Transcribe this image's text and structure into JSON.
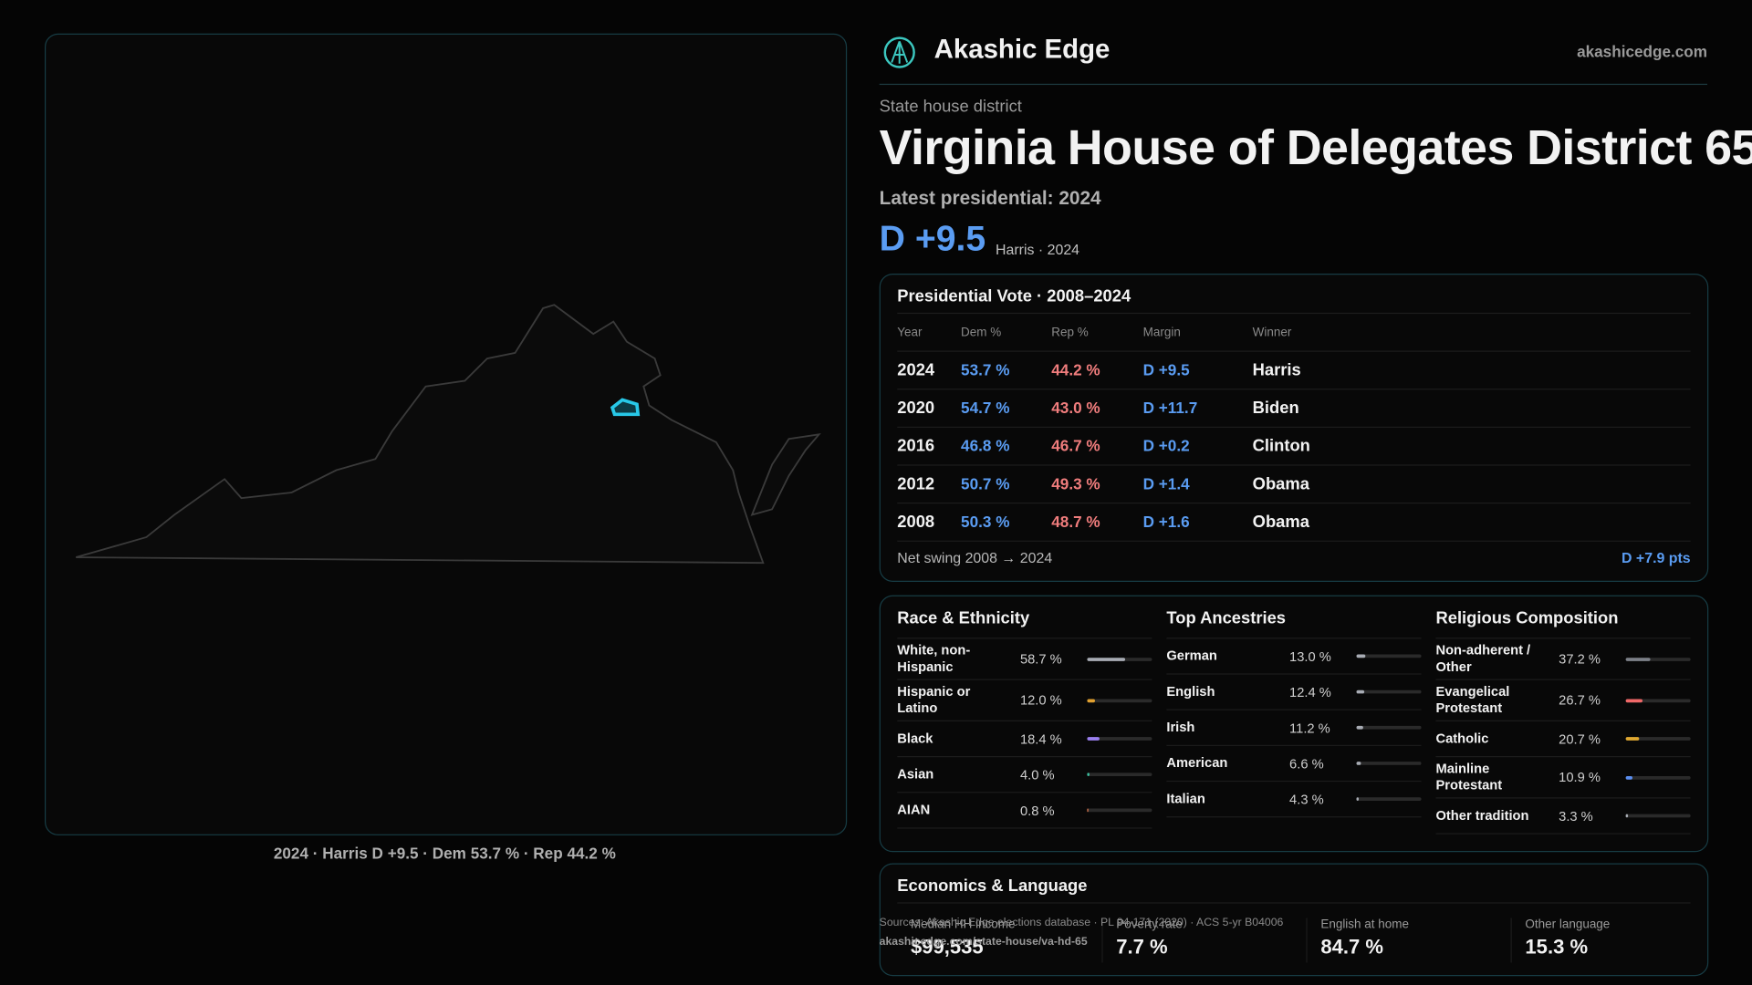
{
  "header": {
    "brand": "Akashic Edge",
    "site": "akashicedge.com"
  },
  "district": {
    "kind": "State house district",
    "title": "Virginia House of Delegates District 65",
    "latest": "Latest presidential: 2024",
    "margin": "D +9.5",
    "margin_note": "Harris · 2024"
  },
  "map": {
    "caption": "2024 · Harris D +9.5 · Dem 53.7 % · Rep 44.2 %"
  },
  "presidential": {
    "title": "Presidential Vote · 2008–2024",
    "columns": [
      "Year",
      "Dem %",
      "Rep %",
      "Margin",
      "Winner"
    ],
    "rows": [
      [
        "2024",
        "53.7 %",
        "44.2 %",
        "D +9.5",
        "Harris"
      ],
      [
        "2020",
        "54.7 %",
        "43.0 %",
        "D +11.7",
        "Biden"
      ],
      [
        "2016",
        "46.8 %",
        "46.7 %",
        "D +0.2",
        "Clinton"
      ],
      [
        "2012",
        "50.7 %",
        "49.3 %",
        "D +1.4",
        "Obama"
      ],
      [
        "2008",
        "50.3 %",
        "48.7 %",
        "D +1.6",
        "Obama"
      ]
    ],
    "swing_label": "Net swing 2008 → 2024",
    "swing_value": "D +7.9 pts"
  },
  "demographics": [
    {
      "title": "Race & Ethnicity",
      "items": [
        {
          "name": "White, non-Hispanic",
          "value": 58.7,
          "label": "58.7 %",
          "color": "#a8acb4"
        },
        {
          "name": "Hispanic or Latino",
          "value": 12.0,
          "label": "12.0 %",
          "color": "#e0a030"
        },
        {
          "name": "Black",
          "value": 18.4,
          "label": "18.4 %",
          "color": "#9a7ff0"
        },
        {
          "name": "Asian",
          "value": 4.0,
          "label": "4.0 %",
          "color": "#3cc0a0"
        },
        {
          "name": "AIAN",
          "value": 0.8,
          "label": "0.8 %",
          "color": "#e07a50"
        }
      ]
    },
    {
      "title": "Top Ancestries",
      "items": [
        {
          "name": "German",
          "value": 13.0,
          "label": "13.0 %",
          "color": "#a8acb4"
        },
        {
          "name": "English",
          "value": 12.4,
          "label": "12.4 %",
          "color": "#a8acb4"
        },
        {
          "name": "Irish",
          "value": 11.2,
          "label": "11.2 %",
          "color": "#a8acb4"
        },
        {
          "name": "American",
          "value": 6.6,
          "label": "6.6 %",
          "color": "#a8acb4"
        },
        {
          "name": "Italian",
          "value": 4.3,
          "label": "4.3 %",
          "color": "#a8acb4"
        }
      ]
    },
    {
      "title": "Religious Composition",
      "items": [
        {
          "name": "Non-adherent / Other",
          "value": 37.2,
          "label": "37.2 %",
          "color": "#7c8088"
        },
        {
          "name": "Evangelical Protestant",
          "value": 26.7,
          "label": "26.7 %",
          "color": "#f06868"
        },
        {
          "name": "Catholic",
          "value": 20.7,
          "label": "20.7 %",
          "color": "#e0a830"
        },
        {
          "name": "Mainline Protestant",
          "value": 10.9,
          "label": "10.9 %",
          "color": "#5a8ef0"
        },
        {
          "name": "Other tradition",
          "value": 3.3,
          "label": "3.3 %",
          "color": "#a8acb4"
        }
      ]
    }
  ],
  "economics": {
    "title": "Economics & Language",
    "stats": [
      {
        "label": "Median HH income",
        "value": "$99,535"
      },
      {
        "label": "Poverty rate",
        "value": "7.7 %"
      },
      {
        "label": "English at home",
        "value": "84.7 %"
      },
      {
        "label": "Other language",
        "value": "15.3 %"
      }
    ]
  },
  "footer": {
    "sources": "Sources: Akashic Edge elections database · PL 94-171 (2020) · ACS 5-yr B04006",
    "url": "akashicedge.com/state-house/va-hd-65"
  }
}
